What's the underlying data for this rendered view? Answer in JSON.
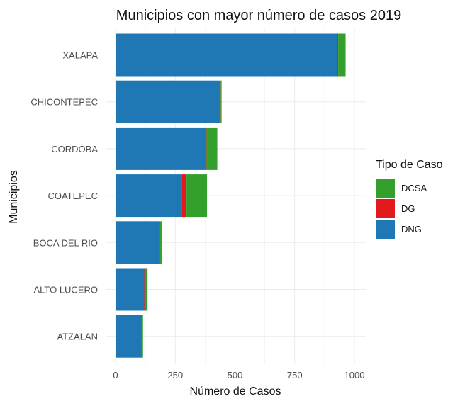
{
  "chart_data": {
    "type": "bar",
    "orientation": "horizontal",
    "stacked": true,
    "title": "Municipios con mayor número de casos 2019",
    "xlabel": "Número de Casos",
    "ylabel": "Municipios",
    "xlim": [
      0,
      1000
    ],
    "xticks": [
      0,
      250,
      500,
      750,
      1000
    ],
    "xtick_labels": [
      "0",
      "250",
      "500",
      "750",
      "1000"
    ],
    "grid": true,
    "legend_position": "right",
    "legend_title": "Tipo de Caso",
    "categories": [
      "XALAPA",
      "CHICONTEPEC",
      "CORDOBA",
      "COATEPEC",
      "BOCA DEL RIO",
      "ALTO LUCERO",
      "ATZALAN"
    ],
    "series": [
      {
        "name": "DNG",
        "color": "#1f78b4",
        "values": [
          927,
          438,
          377,
          277,
          185,
          120,
          108
        ]
      },
      {
        "name": "DG",
        "color": "#e31a1c",
        "values": [
          5,
          2,
          4,
          20,
          2,
          2,
          2
        ]
      },
      {
        "name": "DCSA",
        "color": "#33a02c",
        "values": [
          31,
          4,
          45,
          86,
          6,
          12,
          5
        ]
      }
    ],
    "legend_order": [
      "DCSA",
      "DG",
      "DNG"
    ]
  }
}
